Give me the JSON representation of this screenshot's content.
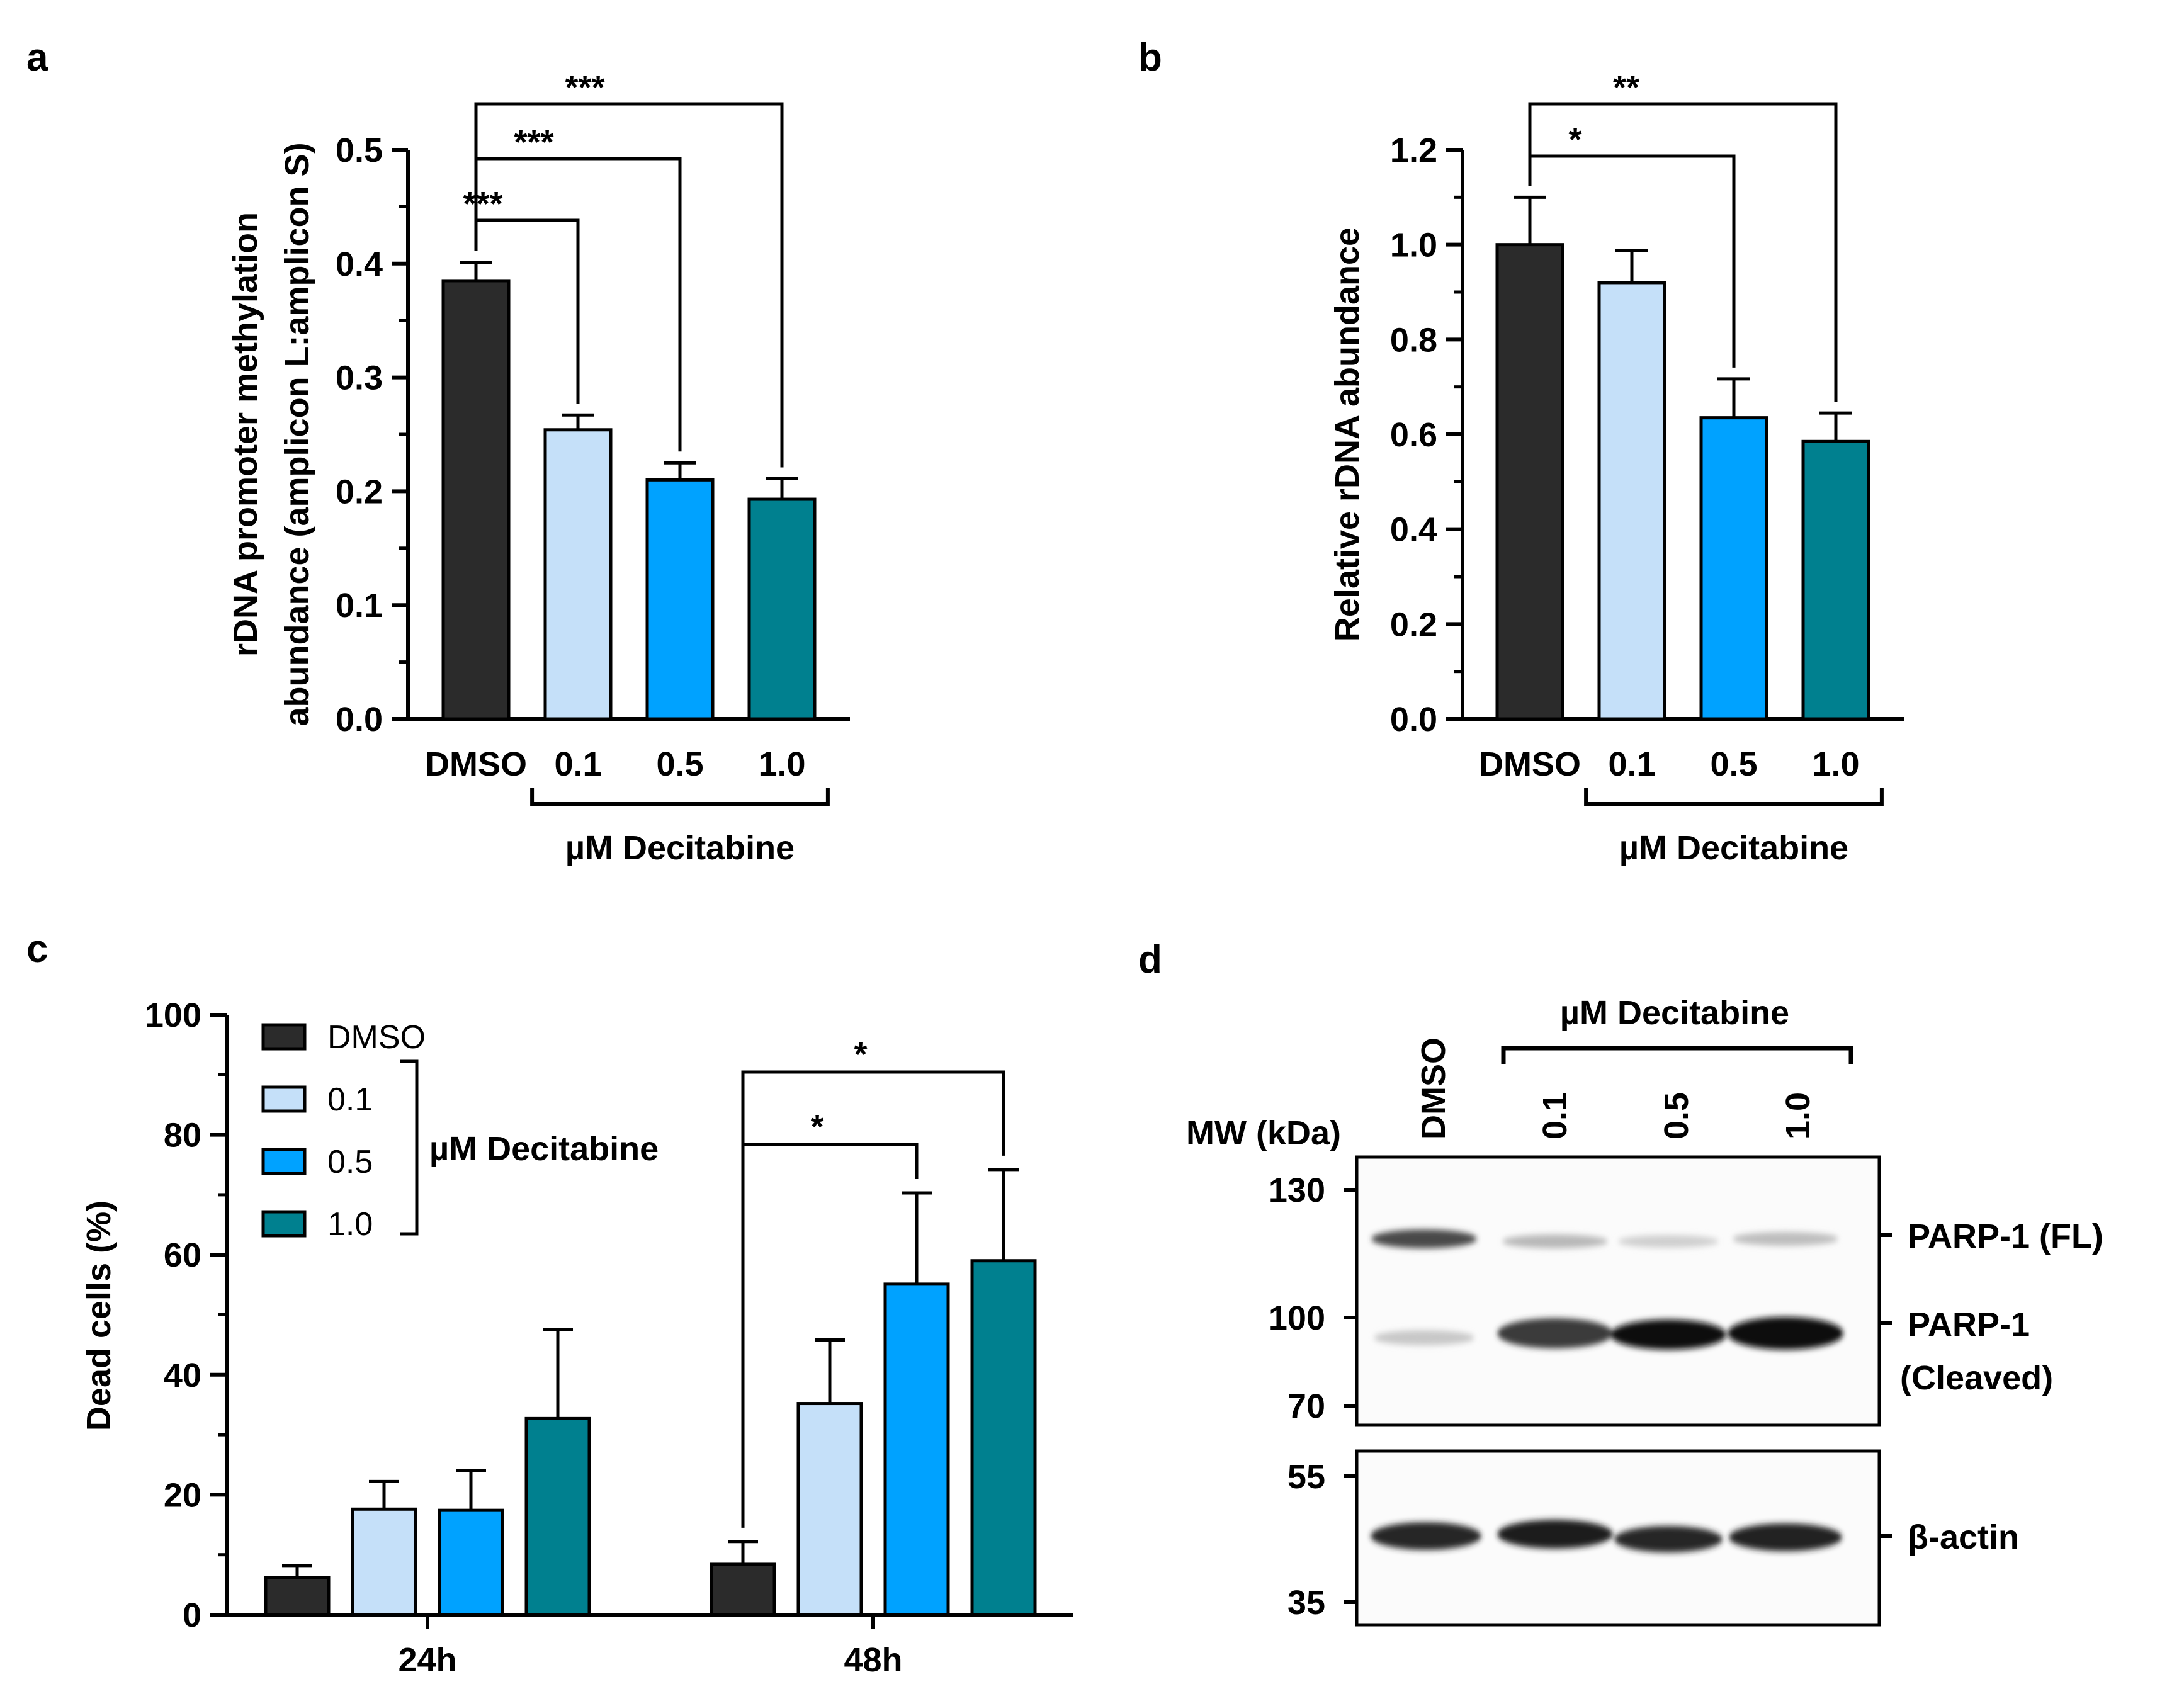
{
  "colors": {
    "dmso": "#2b2b2b",
    "c01": "#c5e0f9",
    "c05": "#00a2ff",
    "c10": "#00808f",
    "axis": "#000000"
  },
  "chart_data": [
    {
      "panel": "a",
      "type": "bar",
      "categories": [
        "DMSO",
        "0.1",
        "0.5",
        "1.0"
      ],
      "values": [
        0.385,
        0.254,
        0.21,
        0.193
      ],
      "errors": [
        0.016,
        0.013,
        0.015,
        0.018
      ],
      "ylabel_lines": [
        "rDNA promoter methylation",
        "abundance (amplicon L:amplicon S)"
      ],
      "group_label": "µM Decitabine",
      "ylim": [
        0,
        0.5
      ],
      "yticks": [
        "0.0",
        "0.1",
        "0.2",
        "0.3",
        "0.4",
        "0.5"
      ],
      "significance": [
        {
          "from": "DMSO",
          "to": "0.1",
          "label": "***"
        },
        {
          "from": "DMSO",
          "to": "0.5",
          "label": "***"
        },
        {
          "from": "DMSO",
          "to": "1.0",
          "label": "***"
        }
      ]
    },
    {
      "panel": "b",
      "type": "bar",
      "categories": [
        "DMSO",
        "0.1",
        "0.5",
        "1.0"
      ],
      "values": [
        1.0,
        0.92,
        0.635,
        0.585
      ],
      "errors": [
        0.1,
        0.068,
        0.082,
        0.06
      ],
      "ylabel": "Relative rDNA abundance",
      "group_label": "µM Decitabine",
      "ylim": [
        0,
        1.2
      ],
      "yticks": [
        "0.0",
        "0.2",
        "0.4",
        "0.6",
        "0.8",
        "1.0",
        "1.2"
      ],
      "significance": [
        {
          "from": "DMSO",
          "to": "0.5",
          "label": "*"
        },
        {
          "from": "DMSO",
          "to": "1.0",
          "label": "**"
        }
      ]
    },
    {
      "panel": "c",
      "type": "bar",
      "categories": [
        "24h",
        "48h"
      ],
      "series": [
        {
          "name": "DMSO",
          "values": [
            6.2,
            8.4
          ],
          "errors": [
            2.0,
            3.8
          ]
        },
        {
          "name": "0.1",
          "values": [
            17.6,
            35.2
          ],
          "errors": [
            4.6,
            10.6
          ]
        },
        {
          "name": "0.5",
          "values": [
            17.4,
            55.1
          ],
          "errors": [
            6.6,
            15.2
          ]
        },
        {
          "name": "1.0",
          "values": [
            32.7,
            59.0
          ],
          "errors": [
            14.8,
            15.2
          ]
        }
      ],
      "ylabel": "Dead cells (%)",
      "legend_group_label": "µM Decitabine",
      "ylim": [
        0,
        100
      ],
      "yticks": [
        "0",
        "20",
        "40",
        "60",
        "80",
        "100"
      ],
      "significance": [
        {
          "group": "48h",
          "from": "DMSO",
          "to": "0.5",
          "label": "*"
        },
        {
          "group": "48h",
          "from": "DMSO",
          "to": "1.0",
          "label": "*"
        }
      ]
    }
  ],
  "panel_labels": {
    "a": "a",
    "b": "b",
    "c": "c",
    "d": "d"
  },
  "western_blot": {
    "lanes": [
      "DMSO",
      "0.1",
      "0.5",
      "1.0"
    ],
    "treatment_label": "µM Decitabine",
    "mw_label": "MW (kDa)",
    "top_markers": [
      "130",
      "100",
      "70"
    ],
    "bottom_markers": [
      "55",
      "35"
    ],
    "bands": {
      "parp_fl_label": "PARP-1 (FL)",
      "parp_cleaved_label_1": "PARP-1",
      "parp_cleaved_label_2": "(Cleaved)",
      "actin_label": "β-actin"
    }
  }
}
